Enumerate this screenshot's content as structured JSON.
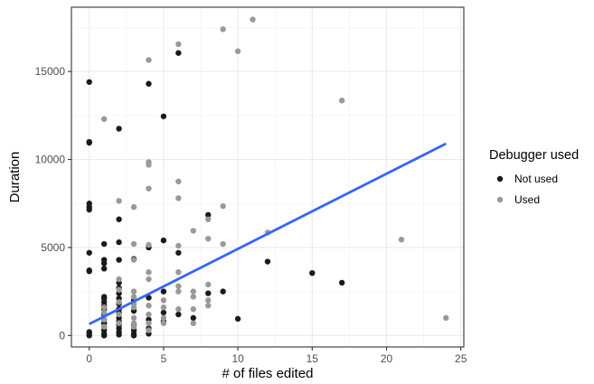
{
  "chart_data": {
    "type": "scatter",
    "xlabel": "# of files edited",
    "ylabel": "Duration",
    "xlim": [
      -1.2,
      25.2
    ],
    "ylim": [
      -650,
      18650
    ],
    "xticks": [
      0,
      5,
      10,
      15,
      20,
      25
    ],
    "yticks": [
      0,
      5000,
      10000,
      15000
    ],
    "x_minor_ticks": [
      2.5,
      7.5,
      12.5,
      17.5,
      22.5
    ],
    "y_minor_ticks": [
      2500,
      7500,
      12500,
      17500
    ],
    "grid": true,
    "legend": {
      "title": "Debugger used",
      "position": "right"
    },
    "series": [
      {
        "name": "Not used",
        "color": "#1a1a1a",
        "points": [
          [
            0,
            14400
          ],
          [
            0,
            11000
          ],
          [
            0,
            10950
          ],
          [
            0,
            7500
          ],
          [
            0,
            7300
          ],
          [
            0,
            7150
          ],
          [
            0,
            4700
          ],
          [
            0,
            3700
          ],
          [
            0,
            3650
          ],
          [
            0,
            200
          ],
          [
            0,
            100
          ],
          [
            0,
            0
          ],
          [
            1,
            5200
          ],
          [
            1,
            4300
          ],
          [
            1,
            4100
          ],
          [
            1,
            3800
          ],
          [
            1,
            2200
          ],
          [
            1,
            2100
          ],
          [
            1,
            1900
          ],
          [
            1,
            1700
          ],
          [
            1,
            1500
          ],
          [
            1,
            1200
          ],
          [
            1,
            900
          ],
          [
            1,
            700
          ],
          [
            1,
            500
          ],
          [
            1,
            300
          ],
          [
            1,
            100
          ],
          [
            1,
            0
          ],
          [
            2,
            11750
          ],
          [
            2,
            6600
          ],
          [
            2,
            5300
          ],
          [
            2,
            4300
          ],
          [
            2,
            3000
          ],
          [
            2,
            2700
          ],
          [
            2,
            2400
          ],
          [
            2,
            2100
          ],
          [
            2,
            1800
          ],
          [
            2,
            1500
          ],
          [
            2,
            1300
          ],
          [
            2,
            1000
          ],
          [
            2,
            800
          ],
          [
            2,
            600
          ],
          [
            2,
            400
          ],
          [
            2,
            200
          ],
          [
            2,
            50
          ],
          [
            3,
            4350
          ],
          [
            3,
            2000
          ],
          [
            3,
            1400
          ],
          [
            3,
            600
          ],
          [
            3,
            300
          ],
          [
            3,
            100
          ],
          [
            3,
            0
          ],
          [
            4,
            14300
          ],
          [
            4,
            5000
          ],
          [
            4,
            2150
          ],
          [
            4,
            900
          ],
          [
            4,
            400
          ],
          [
            4,
            100
          ],
          [
            5,
            12450
          ],
          [
            5,
            5400
          ],
          [
            5,
            2500
          ],
          [
            5,
            1300
          ],
          [
            5,
            800
          ],
          [
            6,
            16050
          ],
          [
            6,
            4700
          ],
          [
            6,
            1200
          ],
          [
            7,
            1000
          ],
          [
            8,
            6850
          ],
          [
            8,
            2400
          ],
          [
            9,
            2500
          ],
          [
            10,
            950
          ],
          [
            12,
            4200
          ],
          [
            15,
            3550
          ],
          [
            17,
            3000
          ]
        ]
      },
      {
        "name": "Used",
        "color": "#999999",
        "points": [
          [
            1,
            12300
          ],
          [
            1,
            1600
          ],
          [
            1,
            1300
          ],
          [
            1,
            900
          ],
          [
            1,
            500
          ],
          [
            2,
            7650
          ],
          [
            2,
            3200
          ],
          [
            2,
            2600
          ],
          [
            2,
            1900
          ],
          [
            2,
            1200
          ],
          [
            2,
            700
          ],
          [
            3,
            7300
          ],
          [
            3,
            5200
          ],
          [
            3,
            4300
          ],
          [
            3,
            2500
          ],
          [
            3,
            2200
          ],
          [
            3,
            1800
          ],
          [
            3,
            1600
          ],
          [
            3,
            1000
          ],
          [
            3,
            700
          ],
          [
            3,
            500
          ],
          [
            4,
            15650
          ],
          [
            4,
            9850
          ],
          [
            4,
            9700
          ],
          [
            4,
            8350
          ],
          [
            4,
            5150
          ],
          [
            4,
            3600
          ],
          [
            4,
            3200
          ],
          [
            4,
            1700
          ],
          [
            4,
            1200
          ],
          [
            4,
            700
          ],
          [
            4,
            300
          ],
          [
            5,
            2000
          ],
          [
            5,
            1600
          ],
          [
            5,
            1000
          ],
          [
            5,
            700
          ],
          [
            6,
            16550
          ],
          [
            6,
            8750
          ],
          [
            6,
            7800
          ],
          [
            6,
            5100
          ],
          [
            6,
            3600
          ],
          [
            6,
            2800
          ],
          [
            6,
            2500
          ],
          [
            6,
            1500
          ],
          [
            7,
            5950
          ],
          [
            7,
            2500
          ],
          [
            7,
            2200
          ],
          [
            7,
            1500
          ],
          [
            7,
            700
          ],
          [
            8,
            6600
          ],
          [
            8,
            5500
          ],
          [
            8,
            2900
          ],
          [
            8,
            2000
          ],
          [
            8,
            1700
          ],
          [
            9,
            17400
          ],
          [
            9,
            7350
          ],
          [
            9,
            5200
          ],
          [
            10,
            16150
          ],
          [
            11,
            17950
          ],
          [
            12,
            5850
          ],
          [
            17,
            13350
          ],
          [
            21,
            5450
          ],
          [
            24,
            1000
          ]
        ]
      }
    ],
    "trend_line": {
      "color": "#3366ff",
      "points": [
        [
          0,
          650
        ],
        [
          24,
          10900
        ]
      ]
    }
  }
}
